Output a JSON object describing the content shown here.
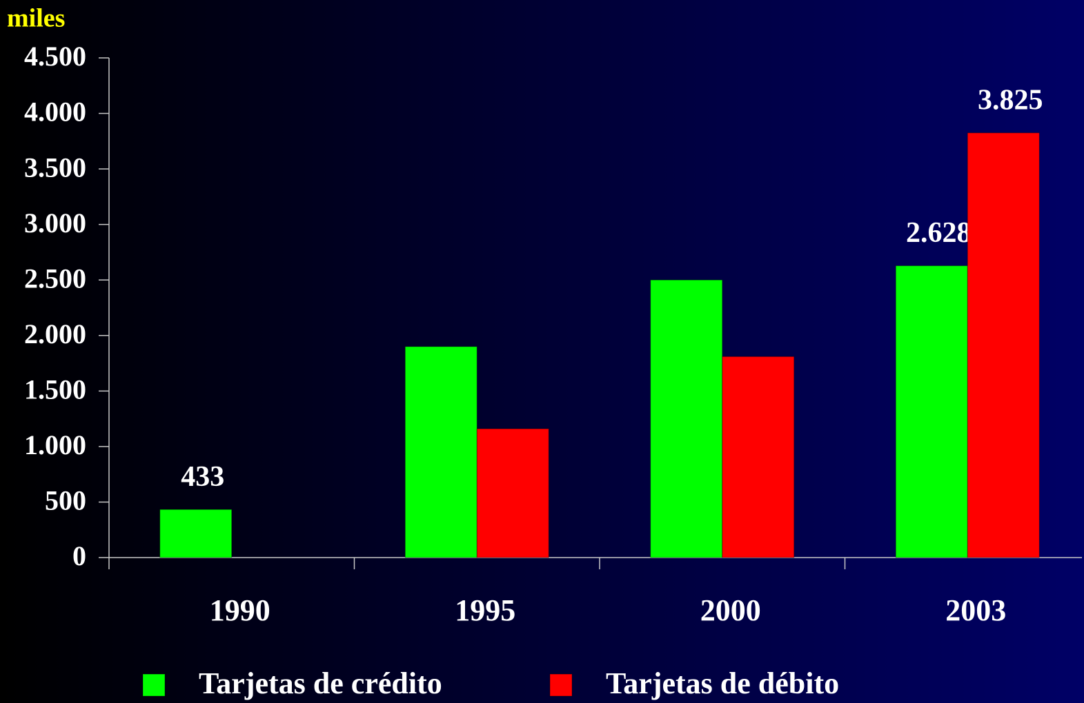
{
  "chart_data": {
    "type": "bar",
    "y_axis_label": "miles",
    "categories": [
      "1990",
      "1995",
      "2000",
      "2003"
    ],
    "series": [
      {
        "name": "Tarjetas de crédito",
        "color": "#00ff00",
        "values": [
          433,
          1900,
          2500,
          2628
        ],
        "value_labels": [
          "433",
          null,
          null,
          "2.628"
        ]
      },
      {
        "name": "Tarjetas de débito",
        "color": "#ff0000",
        "values": [
          null,
          1160,
          1810,
          3825
        ],
        "value_labels": [
          null,
          null,
          null,
          "3.825"
        ]
      }
    ],
    "ylim": [
      0,
      4500
    ],
    "yticks": [
      0,
      500,
      {
        "value": 1000,
        "label": "1.000"
      },
      {
        "value": 1500,
        "label": "1.500"
      },
      {
        "value": 2000,
        "label": "2.000"
      },
      {
        "value": 2500,
        "label": "2.500"
      },
      {
        "value": 3000,
        "label": "3.000"
      },
      {
        "value": 3500,
        "label": "3.500"
      },
      {
        "value": 4000,
        "label": "4.000"
      },
      {
        "value": 4500,
        "label": "4.500"
      }
    ],
    "grid": false,
    "legend": "bottom"
  }
}
